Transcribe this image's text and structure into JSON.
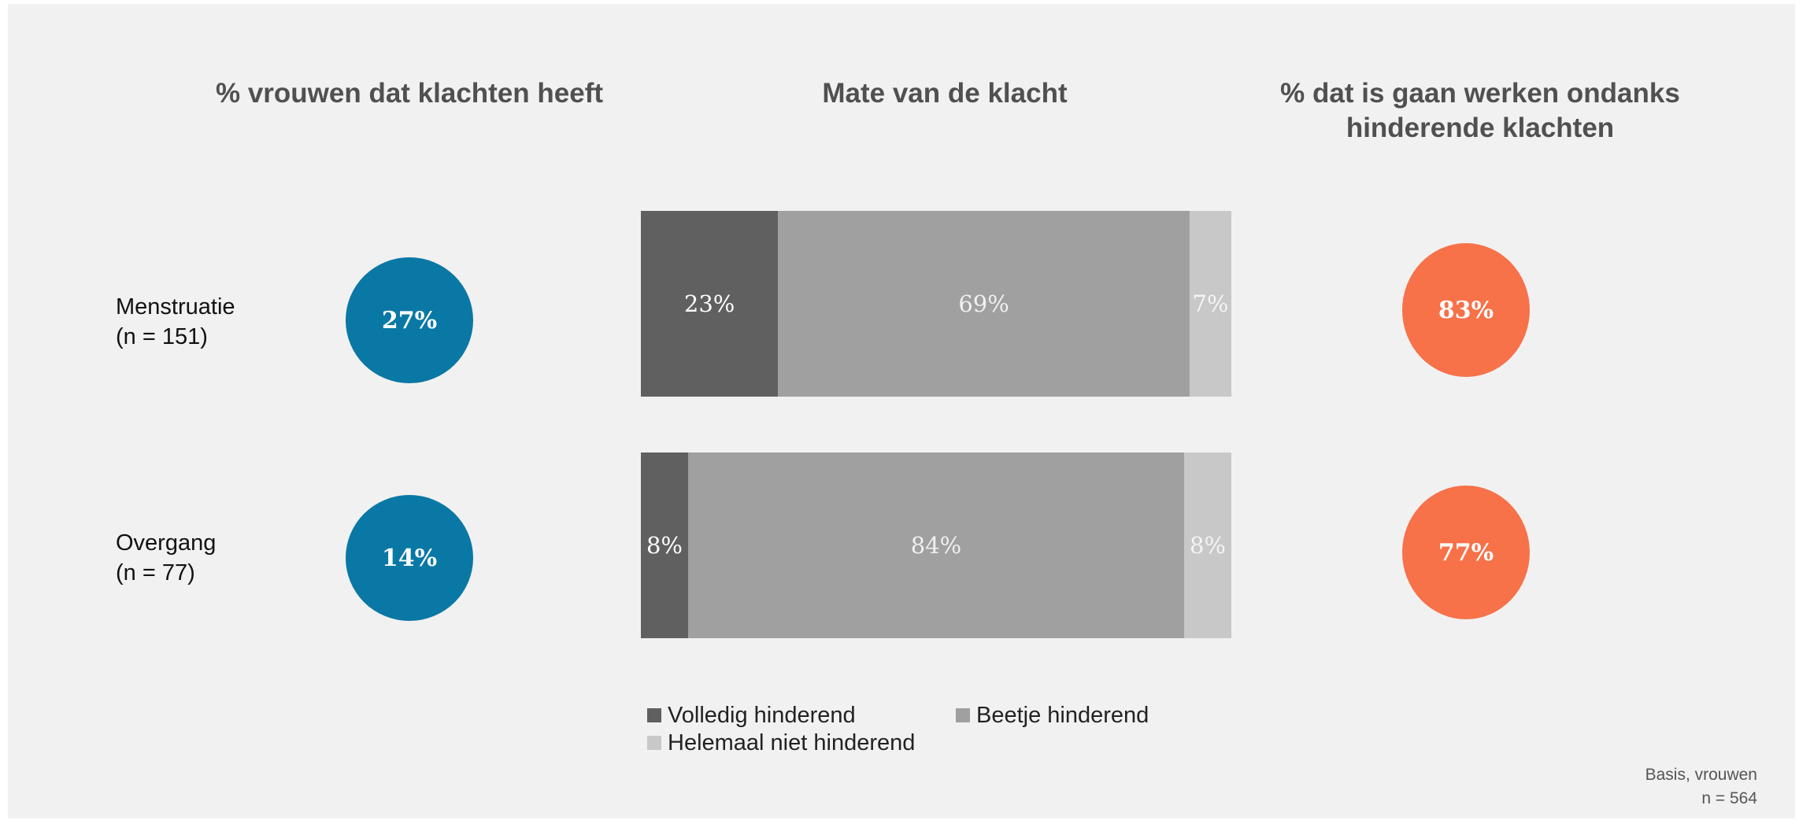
{
  "chart_data": {
    "type": "bar",
    "orientation": "horizontal-stacked-100",
    "column_titles": {
      "left": "% vrouwen dat klachten heeft",
      "middle": "Mate van de klacht",
      "right_line1": "% dat is gaan werken ondanks",
      "right_line2": "hinderende klachten"
    },
    "rows": [
      {
        "label": "Menstruatie",
        "n_label": "(n = 151)",
        "pct_klachten": "27%",
        "pct_werken": "83%",
        "segments": [
          {
            "series": "Volledig hinderend",
            "value": 23,
            "label": "23%"
          },
          {
            "series": "Beetje hinderend",
            "value": 69,
            "label": "69%"
          },
          {
            "series": "Helemaal niet hinderend",
            "value": 7,
            "label": "7%"
          }
        ]
      },
      {
        "label": "Overgang",
        "n_label": "(n = 77)",
        "pct_klachten": "14%",
        "pct_werken": "77%",
        "segments": [
          {
            "series": "Volledig hinderend",
            "value": 8,
            "label": "8%"
          },
          {
            "series": "Beetje hinderend",
            "value": 84,
            "label": "84%"
          },
          {
            "series": "Helemaal niet hinderend",
            "value": 8,
            "label": "8%"
          }
        ]
      }
    ],
    "series": [
      {
        "name": "Volledig hinderend",
        "color": "#606060"
      },
      {
        "name": "Beetje hinderend",
        "color": "#a0a0a0"
      },
      {
        "name": "Helemaal niet hinderend",
        "color": "#c8c8c8"
      }
    ],
    "legend_position": "bottom",
    "colors": {
      "circle_left": "#0a78a5",
      "circle_right": "#f77149"
    }
  },
  "footnote": {
    "line1": "Basis, vrouwen",
    "line2": "n = 564"
  }
}
